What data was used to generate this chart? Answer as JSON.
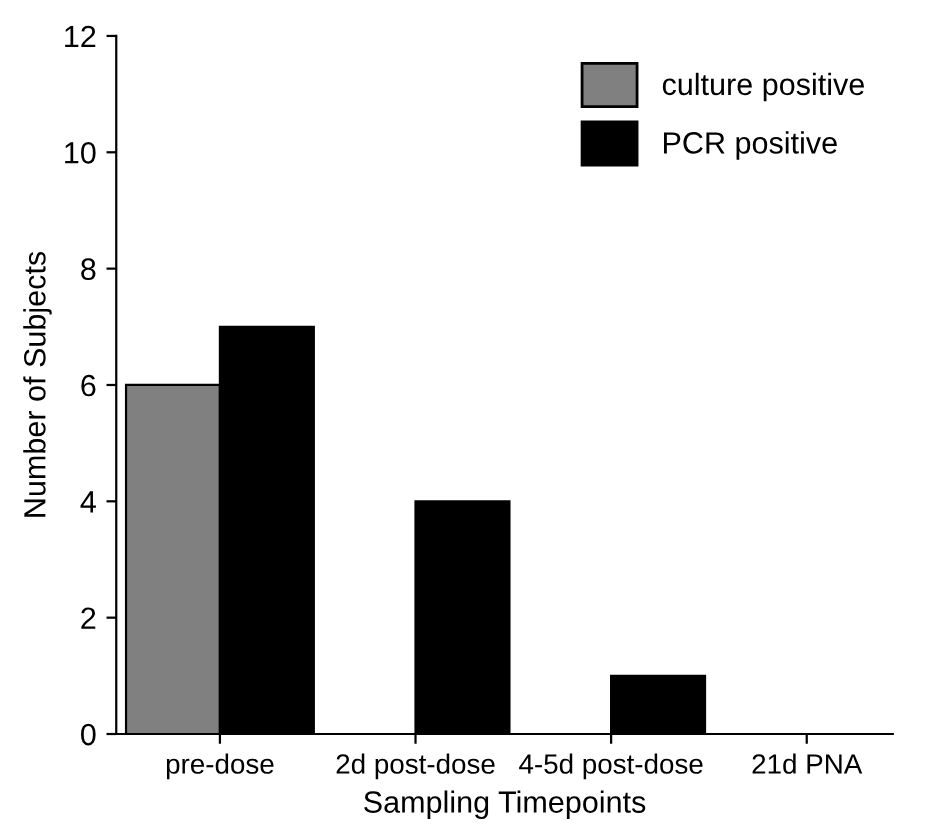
{
  "chart_data": {
    "type": "bar",
    "xlabel": "Sampling Timepoints",
    "ylabel": "Number of Subjects",
    "categories": [
      "pre-dose",
      "2d post-dose",
      "4-5d post-dose",
      "21d PNA"
    ],
    "series": [
      {
        "name": "culture positive",
        "color": "#808080",
        "values": [
          6,
          0,
          0,
          0
        ]
      },
      {
        "name": "PCR positive",
        "color": "#000000",
        "values": [
          7,
          4,
          1,
          0
        ]
      }
    ],
    "ylim": [
      0,
      12
    ],
    "yticks": [
      0,
      2,
      4,
      6,
      8,
      10,
      12
    ],
    "grid": false,
    "legend": "top right"
  }
}
